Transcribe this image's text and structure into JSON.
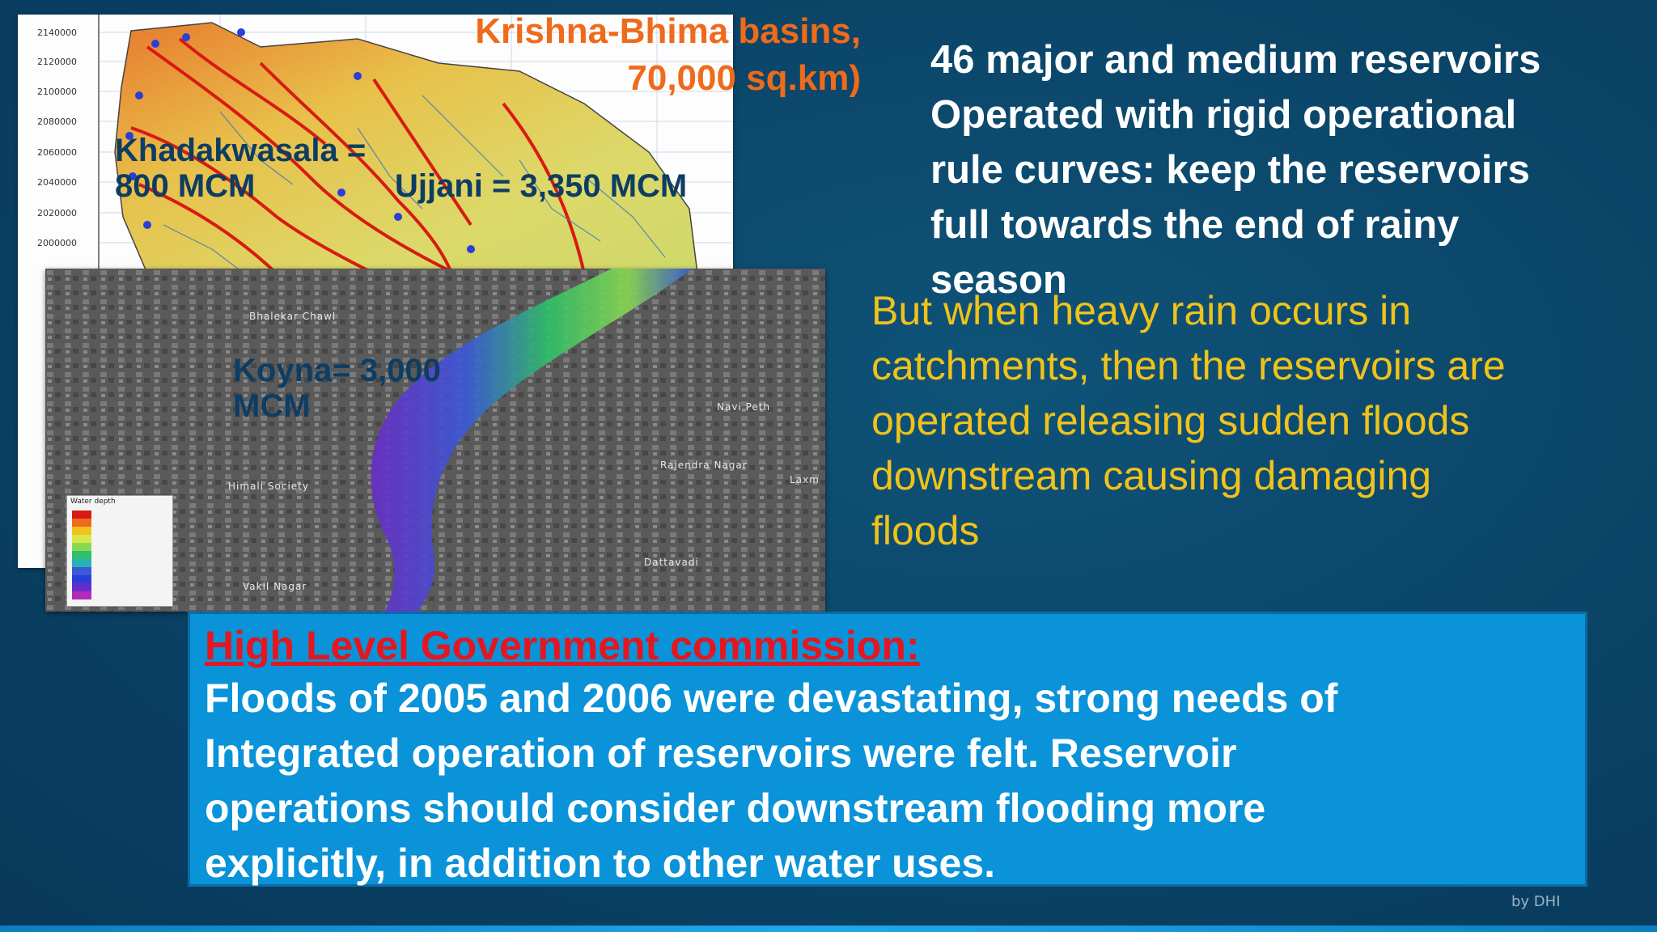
{
  "slide": {
    "basin_map": {
      "title_line1": "Krishna-Bhima basins,",
      "title_line2": "70,000 sq.km)",
      "y_ticks": [
        "2140000",
        "2120000",
        "2100000",
        "2080000",
        "2060000",
        "2040000",
        "2020000",
        "2000000"
      ],
      "khadakwasala_line1": "Khadakwasala =",
      "khadakwasala_line2": "800 MCM",
      "ujjani": "Ujjani = 3,350 MCM"
    },
    "flood_map": {
      "koyna_line1": "Koyna= 3,000",
      "koyna_line2": "MCM",
      "places": {
        "bhalekar_chawl": "Bhalekar Chawl",
        "navi_peth": "Navi Peth",
        "rajendra_nagar": "Rajendra Nagar",
        "laxmi": "Laxm",
        "himali_society": "Himali Society",
        "dattavadi": "Dattavadi",
        "vakil_nagar": "Vakil Nagar"
      },
      "legend_title": "Water depth"
    },
    "reservoir_text": {
      "line1": "46 major and medium reservoirs",
      "line2": "Operated with rigid operational",
      "line3": "rule curves: keep the reservoirs",
      "line4": "full towards the end of rainy",
      "line5": "season"
    },
    "rain_text": {
      "line1": "But when heavy rain occurs in",
      "line2": "catchments, then the reservoirs are",
      "line3": "operated releasing sudden floods",
      "line4": "downstream causing damaging",
      "line5": "floods"
    },
    "commission": {
      "title": "High Level Government commission:",
      "line1": "Floods of 2005 and 2006 were devastating, strong needs of",
      "line2": "Integrated operation of reservoirs were felt. Reservoir",
      "line3": "operations should consider downstream flooding more",
      "line4": "explicitly, in addition to other water uses."
    },
    "credit": "by DHI"
  },
  "colors": {
    "background": "#0a4366",
    "white_text": "#ffffff",
    "yellow_text": "#f0c21a",
    "orange_label": "#ef6a1a",
    "dark_label": "#0e3d63",
    "box_fill": "#0a93d8",
    "title_red": "#e4161f"
  }
}
